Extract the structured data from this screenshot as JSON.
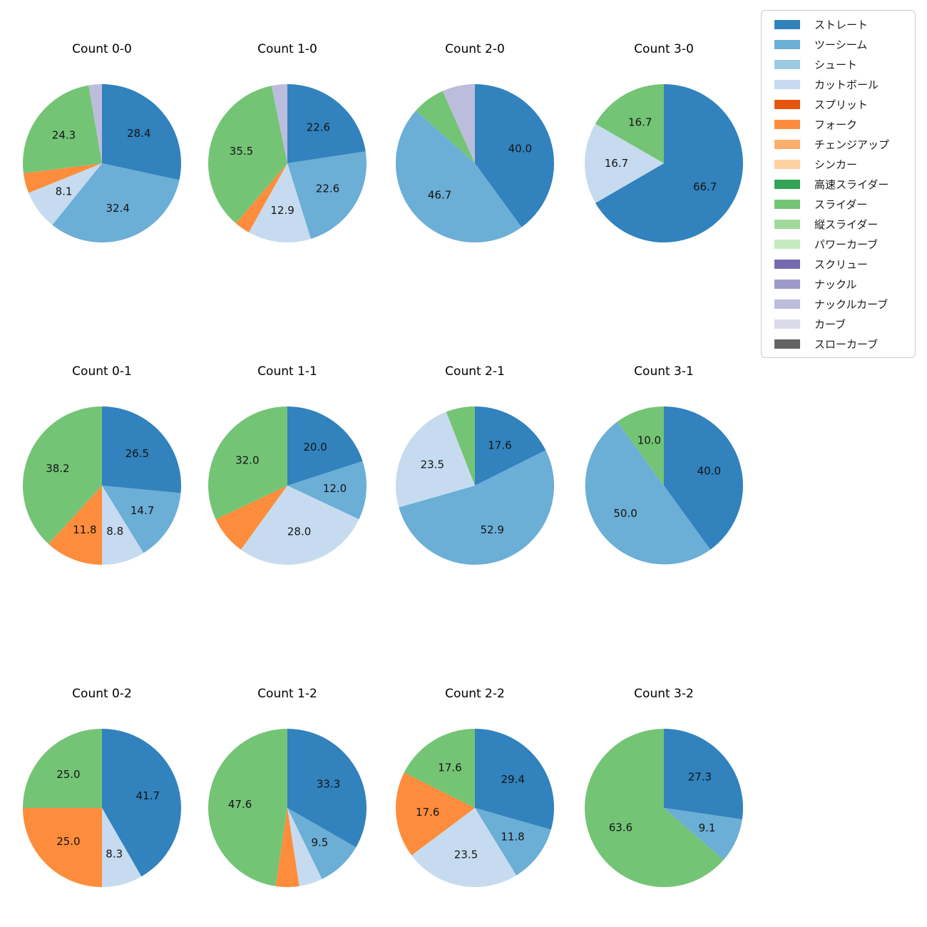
{
  "background_color": "#ffffff",
  "text_color": "#141414",
  "legend": {
    "border_color": "#cccccc",
    "items": [
      {
        "label": "ストレート",
        "color": "#3182bd"
      },
      {
        "label": "ツーシーム",
        "color": "#6baed6"
      },
      {
        "label": "シュート",
        "color": "#9ecae1"
      },
      {
        "label": "カットボール",
        "color": "#c6dbef"
      },
      {
        "label": "スプリット",
        "color": "#e6550d"
      },
      {
        "label": "フォーク",
        "color": "#fd8d3c"
      },
      {
        "label": "チェンジアップ",
        "color": "#fdae6b"
      },
      {
        "label": "シンカー",
        "color": "#fdd0a2"
      },
      {
        "label": "高速スライダー",
        "color": "#31a354"
      },
      {
        "label": "スライダー",
        "color": "#74c476"
      },
      {
        "label": "縦スライダー",
        "color": "#a1d99b"
      },
      {
        "label": "パワーカーブ",
        "color": "#c7e9c0"
      },
      {
        "label": "スクリュー",
        "color": "#756bb1"
      },
      {
        "label": "ナックル",
        "color": "#9e9ac8"
      },
      {
        "label": "ナックルカーブ",
        "color": "#bcbddc"
      },
      {
        "label": "カーブ",
        "color": "#dadaeb"
      },
      {
        "label": "スローカーブ",
        "color": "#636363"
      }
    ]
  },
  "chart_data": {
    "type": "pie",
    "layout": "grid-3x4",
    "start_angle": "top",
    "direction": "clockwise",
    "value_unit": "percent",
    "charts": [
      {
        "title": "Count 0-0",
        "slices": [
          {
            "pitch": "ストレート",
            "pct": 28.4,
            "label": "28.4"
          },
          {
            "pitch": "ツーシーム",
            "pct": 32.4,
            "label": "32.4"
          },
          {
            "pitch": "カットボール",
            "pct": 8.1,
            "label": "8.1"
          },
          {
            "pitch": "フォーク",
            "pct": 4.1,
            "label": ""
          },
          {
            "pitch": "スライダー",
            "pct": 24.3,
            "label": "24.3"
          },
          {
            "pitch": "ナックルカーブ",
            "pct": 2.7,
            "label": ""
          }
        ]
      },
      {
        "title": "Count 1-0",
        "slices": [
          {
            "pitch": "ストレート",
            "pct": 22.6,
            "label": "22.6"
          },
          {
            "pitch": "ツーシーム",
            "pct": 22.6,
            "label": "22.6"
          },
          {
            "pitch": "カットボール",
            "pct": 12.9,
            "label": "12.9"
          },
          {
            "pitch": "フォーク",
            "pct": 3.2,
            "label": ""
          },
          {
            "pitch": "スライダー",
            "pct": 35.5,
            "label": "35.5"
          },
          {
            "pitch": "ナックルカーブ",
            "pct": 3.2,
            "label": ""
          }
        ]
      },
      {
        "title": "Count 2-0",
        "slices": [
          {
            "pitch": "ストレート",
            "pct": 40.0,
            "label": "40.0"
          },
          {
            "pitch": "ツーシーム",
            "pct": 46.7,
            "label": "46.7"
          },
          {
            "pitch": "スライダー",
            "pct": 6.7,
            "label": ""
          },
          {
            "pitch": "ナックルカーブ",
            "pct": 6.7,
            "label": ""
          }
        ]
      },
      {
        "title": "Count 3-0",
        "slices": [
          {
            "pitch": "ストレート",
            "pct": 66.7,
            "label": "66.7"
          },
          {
            "pitch": "カットボール",
            "pct": 16.7,
            "label": "16.7"
          },
          {
            "pitch": "スライダー",
            "pct": 16.7,
            "label": "16.7"
          }
        ]
      },
      {
        "title": "Count 0-1",
        "slices": [
          {
            "pitch": "ストレート",
            "pct": 26.5,
            "label": "26.5"
          },
          {
            "pitch": "ツーシーム",
            "pct": 14.7,
            "label": "14.7"
          },
          {
            "pitch": "カットボール",
            "pct": 8.8,
            "label": "8.8"
          },
          {
            "pitch": "フォーク",
            "pct": 11.8,
            "label": "11.8"
          },
          {
            "pitch": "スライダー",
            "pct": 38.2,
            "label": "38.2"
          }
        ]
      },
      {
        "title": "Count 1-1",
        "slices": [
          {
            "pitch": "ストレート",
            "pct": 20.0,
            "label": "20.0"
          },
          {
            "pitch": "ツーシーム",
            "pct": 12.0,
            "label": "12.0"
          },
          {
            "pitch": "カットボール",
            "pct": 28.0,
            "label": "28.0"
          },
          {
            "pitch": "フォーク",
            "pct": 8.0,
            "label": ""
          },
          {
            "pitch": "スライダー",
            "pct": 32.0,
            "label": "32.0"
          }
        ]
      },
      {
        "title": "Count 2-1",
        "slices": [
          {
            "pitch": "ストレート",
            "pct": 17.6,
            "label": "17.6"
          },
          {
            "pitch": "ツーシーム",
            "pct": 52.9,
            "label": "52.9"
          },
          {
            "pitch": "カットボール",
            "pct": 23.5,
            "label": "23.5"
          },
          {
            "pitch": "スライダー",
            "pct": 5.9,
            "label": ""
          }
        ]
      },
      {
        "title": "Count 3-1",
        "slices": [
          {
            "pitch": "ストレート",
            "pct": 40.0,
            "label": "40.0"
          },
          {
            "pitch": "ツーシーム",
            "pct": 50.0,
            "label": "50.0"
          },
          {
            "pitch": "スライダー",
            "pct": 10.0,
            "label": "10.0"
          }
        ]
      },
      {
        "title": "Count 0-2",
        "slices": [
          {
            "pitch": "ストレート",
            "pct": 41.7,
            "label": "41.7"
          },
          {
            "pitch": "カットボール",
            "pct": 8.3,
            "label": "8.3"
          },
          {
            "pitch": "フォーク",
            "pct": 25.0,
            "label": "25.0"
          },
          {
            "pitch": "スライダー",
            "pct": 25.0,
            "label": "25.0"
          }
        ]
      },
      {
        "title": "Count 1-2",
        "slices": [
          {
            "pitch": "ストレート",
            "pct": 33.3,
            "label": "33.3"
          },
          {
            "pitch": "ツーシーム",
            "pct": 9.5,
            "label": "9.5"
          },
          {
            "pitch": "カットボール",
            "pct": 4.8,
            "label": ""
          },
          {
            "pitch": "フォーク",
            "pct": 4.8,
            "label": ""
          },
          {
            "pitch": "スライダー",
            "pct": 47.6,
            "label": "47.6"
          }
        ]
      },
      {
        "title": "Count 2-2",
        "slices": [
          {
            "pitch": "ストレート",
            "pct": 29.4,
            "label": "29.4"
          },
          {
            "pitch": "ツーシーム",
            "pct": 11.8,
            "label": "11.8"
          },
          {
            "pitch": "カットボール",
            "pct": 23.5,
            "label": "23.5"
          },
          {
            "pitch": "フォーク",
            "pct": 17.6,
            "label": "17.6"
          },
          {
            "pitch": "スライダー",
            "pct": 17.6,
            "label": "17.6"
          }
        ]
      },
      {
        "title": "Count 3-2",
        "slices": [
          {
            "pitch": "ストレート",
            "pct": 27.3,
            "label": "27.3"
          },
          {
            "pitch": "ツーシーム",
            "pct": 9.1,
            "label": "9.1"
          },
          {
            "pitch": "スライダー",
            "pct": 63.6,
            "label": "63.6"
          }
        ]
      }
    ]
  }
}
